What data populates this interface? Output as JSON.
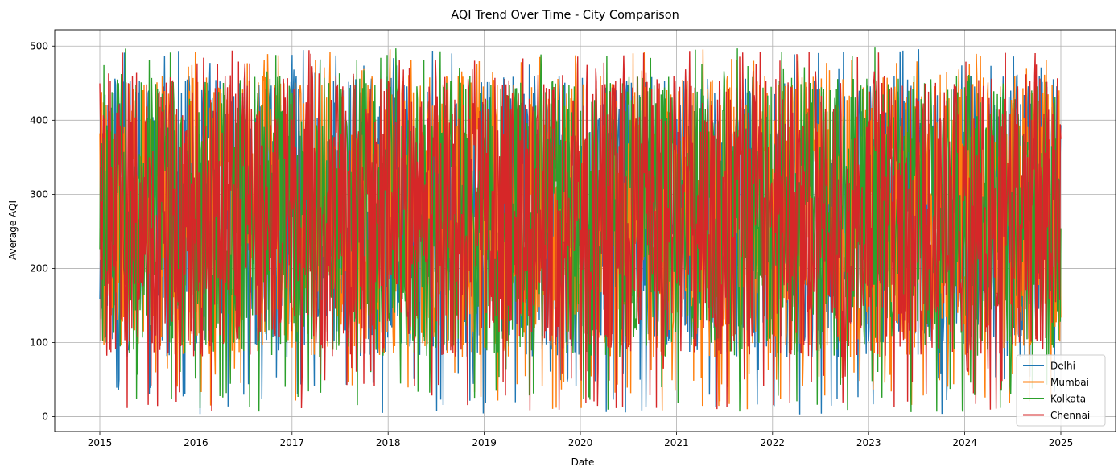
{
  "chart_data": {
    "type": "line",
    "title": "AQI Trend Over Time - City Comparison",
    "xlabel": "Date",
    "ylabel": "Average AQI",
    "x_range": [
      "2015-01-01",
      "2025-01-01"
    ],
    "ylim": [
      -20,
      522
    ],
    "x_ticks": [
      "2015",
      "2016",
      "2017",
      "2018",
      "2019",
      "2020",
      "2021",
      "2022",
      "2023",
      "2024",
      "2025"
    ],
    "y_ticks": [
      "0",
      "100",
      "200",
      "300",
      "400",
      "500"
    ],
    "y_tick_values": [
      0,
      100,
      200,
      300,
      400,
      500
    ],
    "grid": true,
    "legend_position": "bottom-right",
    "series": [
      {
        "name": "Delhi",
        "color": "#1f77b4",
        "approx_min": 3,
        "approx_max": 496,
        "approx_mean": 250
      },
      {
        "name": "Mumbai",
        "color": "#ff7f0e",
        "approx_min": 8,
        "approx_max": 496,
        "approx_mean": 250
      },
      {
        "name": "Kolkata",
        "color": "#2ca02c",
        "approx_min": 5,
        "approx_max": 499,
        "approx_mean": 250
      },
      {
        "name": "Chennai",
        "color": "#d62728",
        "approx_min": 8,
        "approx_max": 496,
        "approx_mean": 250
      }
    ]
  }
}
